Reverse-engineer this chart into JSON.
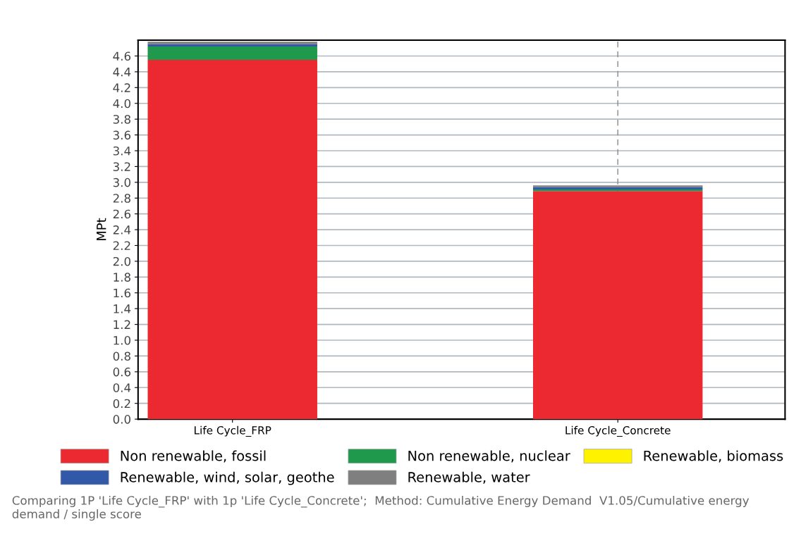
{
  "chart_data": {
    "type": "bar",
    "stacked": true,
    "ylabel": "MPt",
    "categories": [
      "Life Cycle_FRP",
      "Life Cycle_Concrete"
    ],
    "series": [
      {
        "name": "Non renewable, fossil",
        "color": "#ec2830",
        "values": [
          4.55,
          2.89
        ]
      },
      {
        "name": "Non renewable, nuclear",
        "color": "#1f9a4d",
        "values": [
          0.17,
          0.02
        ]
      },
      {
        "name": "Renewable, biomass",
        "color": "#fff200",
        "values": [
          0,
          0
        ]
      },
      {
        "name": "Renewable, wind, solar, geothe",
        "color": "#3258a8",
        "values": [
          0.03,
          0.03
        ]
      },
      {
        "name": "Renewable, water",
        "color": "#7f7f7f",
        "values": [
          0.03,
          0.02
        ]
      }
    ],
    "ylim": [
      0,
      4.8
    ],
    "yticks": [
      {
        "value": 0,
        "label": "0.0"
      },
      0.2,
      0.4,
      0.6,
      0.8,
      {
        "value": 1,
        "label": "1.0"
      },
      1.2,
      1.4,
      1.6,
      1.8,
      {
        "value": 2,
        "label": "2.0"
      },
      2.2,
      2.4,
      2.6,
      2.8,
      {
        "value": 3,
        "label": "3.0"
      },
      3.2,
      3.4,
      3.6,
      3.8,
      {
        "value": 4,
        "label": "4.0"
      },
      4.2,
      4.4,
      4.6
    ],
    "grid": "y",
    "legend": "bottom",
    "ref_lines": [
      {
        "axis": "x",
        "value": "Life Cycle_Concrete",
        "color": "#888888",
        "line_style": "dashed"
      }
    ],
    "annotations": [
      "Comparing 1P 'Life Cycle_FRP' with 1p 'Life Cycle_Concrete';  Method: Cumulative Energy Demand  V1.05/Cumulative energy demand / single score"
    ]
  }
}
